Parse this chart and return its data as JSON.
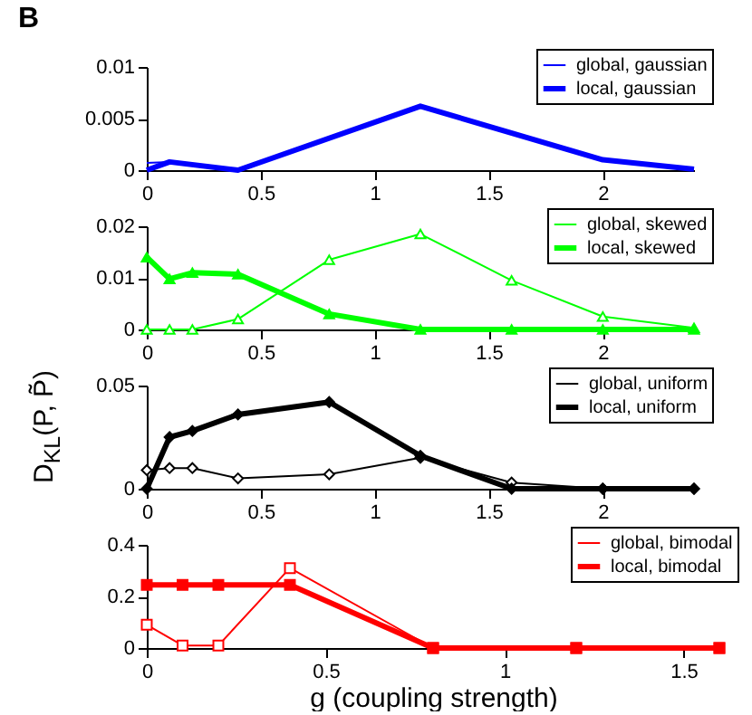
{
  "chart_data": [
    {
      "type": "line",
      "title": "B",
      "xlim": [
        0,
        2.4
      ],
      "xticks": [
        0,
        0.5,
        1,
        1.5,
        2
      ],
      "ylim": [
        0,
        0.01
      ],
      "yticks": [
        0,
        0.005,
        0.01
      ],
      "legend": "top right",
      "grid": false,
      "series": [
        {
          "name": "global, gaussian",
          "color": "#0000ff",
          "marker": "none",
          "x": [
            0,
            0.1
          ],
          "values": [
            0.0007,
            0.0008
          ]
        },
        {
          "name": "local, gaussian",
          "color": "#0000ff",
          "marker": "none",
          "x": [
            0,
            0.1,
            0.4,
            1.2,
            2,
            2.4
          ],
          "values": [
            0,
            0.0008,
            0,
            0.0062,
            0.001,
            0.0001
          ]
        }
      ]
    },
    {
      "type": "line",
      "x": [
        0,
        0.1,
        0.2,
        0.4,
        0.8,
        1.2,
        1.6,
        2,
        2.4
      ],
      "xlim": [
        0,
        2.4
      ],
      "xticks": [
        0,
        0.5,
        1,
        1.5,
        2
      ],
      "ylim": [
        0,
        0.02
      ],
      "yticks": [
        0,
        0.01,
        0.02
      ],
      "legend": "top right",
      "grid": false,
      "series": [
        {
          "name": "global, skewed",
          "color": "#00ff00",
          "marker": "triangle",
          "values": [
            0,
            0,
            0,
            0.002,
            0.0135,
            0.0185,
            0.0095,
            0.0025,
            0.0003
          ]
        },
        {
          "name": "local, skewed",
          "color": "#00ff00",
          "marker": "triangle",
          "values": [
            0.014,
            0.0098,
            0.011,
            0.0107,
            0.003,
            0,
            0,
            0,
            0
          ]
        }
      ]
    },
    {
      "type": "line",
      "ylabel": "D$_{KL}$(P, P̃)",
      "x": [
        0,
        0.1,
        0.2,
        0.4,
        0.8,
        1.2,
        1.6,
        2,
        2.4
      ],
      "xlim": [
        0,
        2.4
      ],
      "xticks": [
        0,
        0.5,
        1,
        1.5,
        2
      ],
      "ylim": [
        0,
        0.05
      ],
      "yticks": [
        0,
        0.05
      ],
      "legend": "top right",
      "grid": false,
      "series": [
        {
          "name": "global, uniform",
          "color": "#000000",
          "marker": "diamond",
          "values": [
            0.009,
            0.01,
            0.01,
            0.005,
            0.007,
            0.015,
            0.003,
            0,
            0
          ]
        },
        {
          "name": "local, uniform",
          "color": "#000000",
          "marker": "diamond",
          "values": [
            0,
            0.025,
            0.028,
            0.036,
            0.042,
            0.016,
            0,
            0,
            0
          ]
        }
      ]
    },
    {
      "type": "line",
      "xlabel": "g (coupling strength)",
      "x": [
        0,
        0.1,
        0.2,
        0.4,
        0.8,
        1.2,
        1.6
      ],
      "xlim": [
        0,
        1.6
      ],
      "xticks": [
        0,
        0.5,
        1,
        1.5
      ],
      "ylim": [
        0,
        0.4
      ],
      "yticks": [
        0,
        0.2,
        0.4
      ],
      "legend": "top right",
      "grid": false,
      "series": [
        {
          "name": "global, bimodal",
          "color": "#ff0000",
          "marker": "square",
          "values": [
            0.09,
            0.01,
            0.01,
            0.31,
            0,
            0,
            0
          ]
        },
        {
          "name": "local, bimodal",
          "color": "#ff0000",
          "marker": "square",
          "values": [
            0.245,
            0.245,
            0.245,
            0.245,
            0,
            0,
            0
          ]
        }
      ]
    }
  ]
}
